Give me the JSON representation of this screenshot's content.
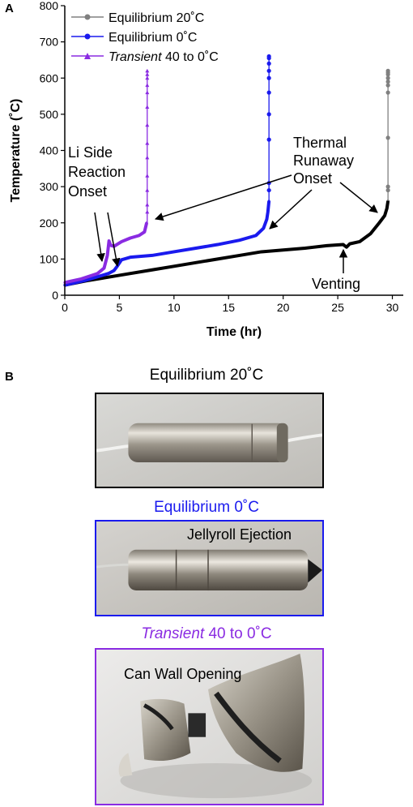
{
  "panel_a_label": "A",
  "panel_b_label": "B",
  "chart_data": {
    "type": "line",
    "xlabel": "Time (hr)",
    "ylabel": "Temperature (˚C)",
    "xlim": [
      0,
      31
    ],
    "ylim": [
      0,
      800
    ],
    "x_ticks": [
      "0",
      "5",
      "10",
      "15",
      "20",
      "25",
      "30"
    ],
    "y_ticks": [
      "0",
      "100",
      "200",
      "300",
      "400",
      "500",
      "600",
      "700",
      "800"
    ],
    "grid": false,
    "legend_position": "top-left",
    "series": [
      {
        "name": "Equilibrium 20˚C",
        "color": "#000000",
        "legend_color": "#808080",
        "marker": "circle",
        "values": [
          [
            0,
            28
          ],
          [
            2,
            40
          ],
          [
            5,
            55
          ],
          [
            8,
            70
          ],
          [
            10,
            80
          ],
          [
            12,
            90
          ],
          [
            14,
            100
          ],
          [
            16,
            110
          ],
          [
            18,
            120
          ],
          [
            20,
            125
          ],
          [
            22,
            130
          ],
          [
            24,
            137
          ],
          [
            25.5,
            140
          ],
          [
            25.8,
            133
          ],
          [
            26.1,
            142
          ],
          [
            27,
            148
          ],
          [
            28,
            170
          ],
          [
            28.8,
            200
          ],
          [
            29.3,
            220
          ],
          [
            29.5,
            240
          ],
          [
            29.6,
            260
          ]
        ],
        "spike": {
          "x": 29.6,
          "values": [
            290,
            300,
            435,
            560,
            580,
            590,
            600,
            610,
            615,
            620
          ]
        }
      },
      {
        "name": "Equilibrium 0˚C",
        "color": "#1a1aee",
        "marker": "circle",
        "values": [
          [
            0,
            28
          ],
          [
            2,
            42
          ],
          [
            4,
            60
          ],
          [
            4.5,
            68
          ],
          [
            4.8,
            80
          ],
          [
            5.2,
            98
          ],
          [
            6,
            105
          ],
          [
            8,
            110
          ],
          [
            10,
            120
          ],
          [
            12,
            130
          ],
          [
            14,
            140
          ],
          [
            16,
            152
          ],
          [
            17.5,
            165
          ],
          [
            18.2,
            185
          ],
          [
            18.5,
            210
          ],
          [
            18.6,
            230
          ],
          [
            18.7,
            260
          ]
        ],
        "spike": {
          "x": 18.7,
          "values": [
            290,
            310,
            430,
            500,
            560,
            600,
            620,
            640,
            655,
            660
          ]
        }
      },
      {
        "name": "Transient 40 to 0˚C",
        "name_italic": "Transient",
        "name_rest": " 40 to 0˚C",
        "color": "#8a2be2",
        "marker": "triangle",
        "values": [
          [
            0,
            35
          ],
          [
            1.5,
            45
          ],
          [
            3,
            60
          ],
          [
            3.6,
            75
          ],
          [
            3.9,
            110
          ],
          [
            4.05,
            150
          ],
          [
            4.2,
            138
          ],
          [
            4.5,
            135
          ],
          [
            5.2,
            148
          ],
          [
            6,
            158
          ],
          [
            6.8,
            165
          ],
          [
            7.3,
            175
          ],
          [
            7.5,
            200
          ]
        ],
        "spike": {
          "x": 7.55,
          "values": [
            230,
            250,
            290,
            330,
            380,
            420,
            470,
            520,
            560,
            580,
            600,
            610,
            620
          ]
        }
      }
    ],
    "annotations": [
      {
        "text_lines": [
          "Li Side",
          "Reaction",
          "Onset"
        ]
      },
      {
        "text_lines": [
          "Thermal",
          "Runaway",
          "Onset"
        ]
      },
      {
        "text_lines": [
          "Venting"
        ]
      }
    ]
  },
  "photos": [
    {
      "title": "Equilibrium 20˚C",
      "title_color": "#000000",
      "frame_color": "#000000",
      "caption": ""
    },
    {
      "title": "Equilibrium 0˚C",
      "title_color": "#1a1aee",
      "frame_color": "#1a1aee",
      "caption": "Jellyroll Ejection"
    },
    {
      "title_italic": "Transient",
      "title_rest": " 40 to 0˚C",
      "title_color": "#8a2be2",
      "frame_color": "#8a2be2",
      "caption": "Can Wall Opening"
    }
  ]
}
